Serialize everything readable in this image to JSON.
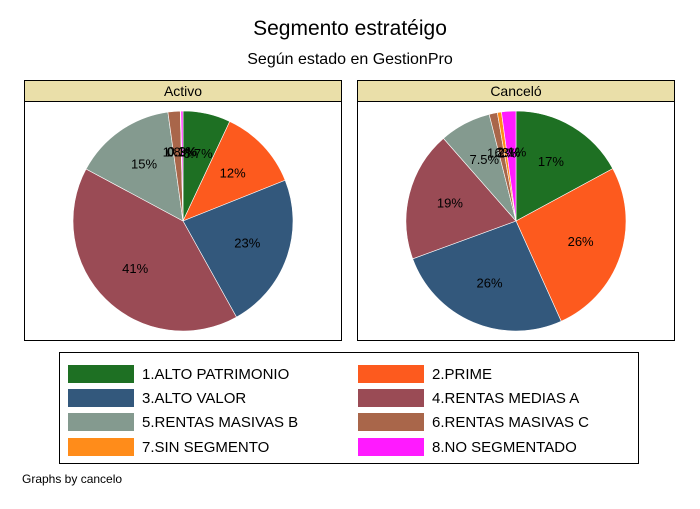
{
  "title": "Segmento estratéigo",
  "subtitle": "Según estado en GestionPro",
  "note": "Graphs by cancelo",
  "chart_data": [
    {
      "type": "pie",
      "panel": "Activo",
      "slices": [
        {
          "segment": "1.ALTO PATRIMONIO",
          "value": 7
        },
        {
          "segment": "2.PRIME",
          "value": 12
        },
        {
          "segment": "3.ALTO VALOR",
          "value": 23
        },
        {
          "segment": "4.RENTAS MEDIAS A",
          "value": 41
        },
        {
          "segment": "5.RENTAS MASIVAS B",
          "value": 15
        },
        {
          "segment": "6.RENTAS MASIVAS C",
          "value": 1.8
        },
        {
          "segment": "7.SIN SEGMENTO",
          "value": 0.1
        },
        {
          "segment": "8.NO SEGMENTADO",
          "value": 0.3
        }
      ],
      "labels": [
        "6.7%",
        "12%",
        "23%",
        "41%",
        "15%",
        "1.8%",
        "0.1%",
        "0.3%"
      ]
    },
    {
      "type": "pie",
      "panel": "Canceló",
      "slices": [
        {
          "segment": "1.ALTO PATRIMONIO",
          "value": 17
        },
        {
          "segment": "2.PRIME",
          "value": 26
        },
        {
          "segment": "3.ALTO VALOR",
          "value": 26
        },
        {
          "segment": "4.RENTAS MEDIAS A",
          "value": 19
        },
        {
          "segment": "5.RENTAS MASIVAS B",
          "value": 7.5
        },
        {
          "segment": "6.RENTAS MASIVAS C",
          "value": 1.2
        },
        {
          "segment": "7.SIN SEGMENTO",
          "value": 0.6
        },
        {
          "segment": "8.NO SEGMENTADO",
          "value": 2.1
        }
      ],
      "labels": [
        "17%",
        "26%",
        "26%",
        "19%",
        "7.5%",
        "1.2%",
        ".63%",
        "2.1%"
      ]
    }
  ],
  "legend": [
    {
      "label": "1.ALTO PATRIMONIO",
      "color": "#1e7023"
    },
    {
      "label": "2.PRIME",
      "color": "#fd5a1e"
    },
    {
      "label": "3.ALTO VALOR",
      "color": "#33587c"
    },
    {
      "label": "4.RENTAS MEDIAS A",
      "color": "#9a4b55"
    },
    {
      "label": "5.RENTAS MASIVAS B",
      "color": "#849a8f"
    },
    {
      "label": "6.RENTAS MASIVAS C",
      "color": "#a9664a"
    },
    {
      "label": "7.SIN SEGMENTO",
      "color": "#ff8c1a"
    },
    {
      "label": "8.NO SEGMENTADO",
      "color": "#ff1aff"
    }
  ]
}
